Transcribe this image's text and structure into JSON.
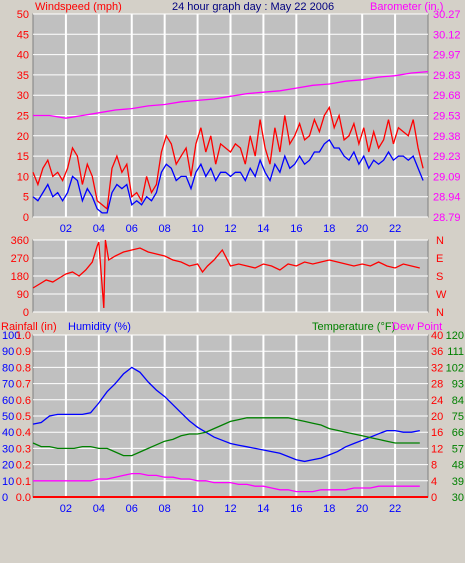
{
  "colors": {
    "background": "#d4d0c8",
    "plot_bg": "#c0c0c0",
    "grid": "#ffffff",
    "wind": "#ff0000",
    "wind_avg": "#0000ff",
    "barometer": "#ff00ff",
    "wind_dir": "#ff0000",
    "humidity": "#0000ff",
    "temperature": "#008000",
    "dew_point": "#ff00ff",
    "rainfall": "#ff0000",
    "title": "#000080"
  },
  "chart_data": [
    {
      "id": "wind",
      "type": "line",
      "title": "24 hour graph day : May 22 2006",
      "left_label": "Windspeed (mph)",
      "right_label": "Barometer (in.)",
      "x_ticks": [
        "02",
        "04",
        "06",
        "08",
        "10",
        "12",
        "14",
        "16",
        "18",
        "20",
        "22"
      ],
      "x_tick_hours": [
        2,
        4,
        6,
        8,
        10,
        12,
        14,
        16,
        18,
        20,
        22
      ],
      "xlim": [
        0,
        24
      ],
      "left_ticks": [
        "0",
        "5",
        "10",
        "15",
        "20",
        "25",
        "30",
        "35",
        "40",
        "45",
        "50"
      ],
      "ylim": [
        0,
        50
      ],
      "right_ticks": [
        "28.79",
        "28.94",
        "29.09",
        "29.23",
        "29.38",
        "29.53",
        "29.68",
        "29.83",
        "29.97",
        "30.12",
        "30.27"
      ],
      "y2lim": [
        28.79,
        30.27
      ],
      "grid": true,
      "series": [
        {
          "name": "Wind gust",
          "axis": "left",
          "x": [
            0,
            0.3,
            0.6,
            0.9,
            1.2,
            1.5,
            1.8,
            2.1,
            2.4,
            2.7,
            3,
            3.3,
            3.6,
            3.9,
            4.2,
            4.5,
            4.8,
            5.1,
            5.4,
            5.7,
            6,
            6.3,
            6.6,
            6.9,
            7.2,
            7.5,
            7.8,
            8.1,
            8.4,
            8.7,
            9,
            9.3,
            9.6,
            9.9,
            10.2,
            10.5,
            10.8,
            11.1,
            11.4,
            11.7,
            12,
            12.3,
            12.6,
            12.9,
            13.2,
            13.5,
            13.8,
            14.1,
            14.4,
            14.7,
            15,
            15.3,
            15.6,
            15.9,
            16.2,
            16.5,
            16.8,
            17.1,
            17.4,
            17.7,
            18,
            18.3,
            18.6,
            18.9,
            19.2,
            19.5,
            19.8,
            20.1,
            20.4,
            20.7,
            21,
            21.3,
            21.6,
            21.9,
            22.2,
            22.5,
            22.8,
            23.1,
            23.4,
            23.7
          ],
          "values": [
            11,
            8,
            12,
            14,
            10,
            11,
            9,
            12,
            17,
            15,
            8,
            13,
            10,
            4,
            3,
            2,
            12,
            15,
            11,
            13,
            5,
            6,
            4,
            10,
            6,
            8,
            16,
            20,
            18,
            13,
            15,
            17,
            10,
            18,
            22,
            16,
            20,
            13,
            18,
            17,
            16,
            18,
            17,
            13,
            20,
            15,
            24,
            17,
            13,
            22,
            16,
            25,
            18,
            20,
            23,
            19,
            20,
            24,
            21,
            25,
            27,
            22,
            25,
            19,
            20,
            23,
            18,
            22,
            16,
            21,
            17,
            19,
            24,
            18,
            22,
            21,
            20,
            24,
            17,
            12
          ]
        },
        {
          "name": "Wind average",
          "axis": "left",
          "x": [
            0,
            0.3,
            0.6,
            0.9,
            1.2,
            1.5,
            1.8,
            2.1,
            2.4,
            2.7,
            3,
            3.3,
            3.6,
            3.9,
            4.2,
            4.5,
            4.8,
            5.1,
            5.4,
            5.7,
            6,
            6.3,
            6.6,
            6.9,
            7.2,
            7.5,
            7.8,
            8.1,
            8.4,
            8.7,
            9,
            9.3,
            9.6,
            9.9,
            10.2,
            10.5,
            10.8,
            11.1,
            11.4,
            11.7,
            12,
            12.3,
            12.6,
            12.9,
            13.2,
            13.5,
            13.8,
            14.1,
            14.4,
            14.7,
            15,
            15.3,
            15.6,
            15.9,
            16.2,
            16.5,
            16.8,
            17.1,
            17.4,
            17.7,
            18,
            18.3,
            18.6,
            18.9,
            19.2,
            19.5,
            19.8,
            20.1,
            20.4,
            20.7,
            21,
            21.3,
            21.6,
            21.9,
            22.2,
            22.5,
            22.8,
            23.1,
            23.4,
            23.7
          ],
          "values": [
            5,
            4,
            6,
            8,
            5,
            6,
            4,
            6,
            10,
            9,
            4,
            7,
            5,
            2,
            1,
            1,
            6,
            8,
            7,
            8,
            3,
            4,
            3,
            5,
            4,
            6,
            11,
            13,
            12,
            9,
            10,
            10,
            7,
            11,
            13,
            10,
            12,
            9,
            11,
            11,
            10,
            11,
            11,
            9,
            12,
            10,
            14,
            11,
            9,
            13,
            11,
            15,
            12,
            13,
            15,
            13,
            14,
            16,
            16,
            18,
            19,
            17,
            17,
            15,
            14,
            16,
            13,
            15,
            12,
            14,
            13,
            14,
            16,
            14,
            15,
            15,
            14,
            15,
            12,
            9
          ]
        },
        {
          "name": "Barometer",
          "axis": "right",
          "x": [
            0,
            1,
            2,
            3,
            4,
            5,
            6,
            7,
            8,
            9,
            10,
            11,
            12,
            13,
            14,
            15,
            16,
            17,
            18,
            19,
            20,
            21,
            22,
            23,
            24
          ],
          "values": [
            29.53,
            29.53,
            29.51,
            29.53,
            29.55,
            29.57,
            29.58,
            29.6,
            29.61,
            29.63,
            29.64,
            29.65,
            29.67,
            29.69,
            29.7,
            29.71,
            29.73,
            29.75,
            29.76,
            29.78,
            29.79,
            29.81,
            29.82,
            29.84,
            29.85
          ]
        }
      ]
    },
    {
      "id": "direction",
      "type": "line",
      "left_ticks": [
        "0",
        "90",
        "180",
        "270",
        "360"
      ],
      "ylim": [
        0,
        360
      ],
      "right_ticks": [
        "N",
        "W",
        "S",
        "E",
        "N"
      ],
      "x_tick_hours": [
        2,
        4,
        6,
        8,
        10,
        12,
        14,
        16,
        18,
        20,
        22
      ],
      "xlim": [
        0,
        24
      ],
      "grid": true,
      "series": [
        {
          "name": "Wind direction",
          "x": [
            0,
            0.4,
            0.8,
            1.2,
            1.6,
            2,
            2.4,
            2.8,
            3.2,
            3.6,
            3.9,
            4.0,
            4.3,
            4.4,
            4.6,
            5,
            5.5,
            6,
            6.5,
            7,
            7.5,
            8,
            8.5,
            9,
            9.5,
            10,
            10.3,
            10.6,
            11,
            11.5,
            12,
            12.5,
            13,
            13.5,
            14,
            14.5,
            15,
            15.5,
            16,
            16.5,
            17,
            17.5,
            18,
            18.5,
            19,
            19.5,
            20,
            20.5,
            21,
            21.5,
            22,
            22.5,
            23,
            23.5
          ],
          "values": [
            120,
            140,
            160,
            150,
            170,
            190,
            200,
            180,
            210,
            250,
            330,
            350,
            20,
            360,
            260,
            280,
            300,
            310,
            320,
            300,
            290,
            280,
            260,
            250,
            230,
            240,
            200,
            230,
            260,
            310,
            230,
            240,
            230,
            220,
            240,
            230,
            210,
            240,
            230,
            250,
            240,
            250,
            260,
            250,
            240,
            230,
            240,
            230,
            250,
            230,
            220,
            240,
            230,
            220
          ]
        }
      ]
    },
    {
      "id": "climate",
      "type": "line",
      "left_label_1": "Rainfall (in)",
      "left_label_2": "Humidity (%)",
      "right_label_1": "Temperature (°F)",
      "right_label_2": "Dew Point",
      "x_ticks": [
        "02",
        "04",
        "06",
        "08",
        "10",
        "12",
        "14",
        "16",
        "18",
        "20",
        "22"
      ],
      "x_tick_hours": [
        2,
        4,
        6,
        8,
        10,
        12,
        14,
        16,
        18,
        20,
        22
      ],
      "xlim": [
        0,
        24
      ],
      "humidity_ticks": [
        "0",
        "10",
        "20",
        "30",
        "40",
        "50",
        "60",
        "70",
        "80",
        "90",
        "100"
      ],
      "rain_ticks": [
        "0.0",
        "0.1",
        "0.2",
        "0.3",
        "0.4",
        "0.5",
        "0.6",
        "0.7",
        "0.8",
        "0.9",
        "1.0"
      ],
      "temp_c_ticks": [
        "0",
        "4",
        "8",
        "12",
        "16",
        "20",
        "24",
        "28",
        "32",
        "36",
        "40"
      ],
      "temp_f_ticks": [
        "30",
        "39",
        "48",
        "57",
        "66",
        "75",
        "84",
        "93",
        "102",
        "111",
        "120"
      ],
      "ylim": [
        0,
        100
      ],
      "grid": true,
      "series": [
        {
          "name": "Humidity (%)",
          "scale": "percent",
          "x": [
            0,
            0.5,
            1,
            1.5,
            2,
            2.5,
            3,
            3.5,
            4,
            4.5,
            5,
            5.5,
            6,
            6.5,
            7,
            7.5,
            8,
            8.5,
            9,
            9.5,
            10,
            10.5,
            11,
            11.5,
            12,
            12.5,
            13,
            13.5,
            14,
            14.5,
            15,
            15.5,
            16,
            16.5,
            17,
            17.5,
            18,
            18.5,
            19,
            19.5,
            20,
            20.5,
            21,
            21.5,
            22,
            22.5,
            23,
            23.5
          ],
          "values": [
            45,
            46,
            50,
            51,
            51,
            51,
            51,
            52,
            58,
            65,
            70,
            76,
            80,
            77,
            71,
            66,
            62,
            57,
            52,
            47,
            43,
            40,
            37,
            35,
            33,
            32,
            31,
            30,
            29,
            28,
            27,
            25,
            23,
            22,
            23,
            24,
            26,
            28,
            31,
            33,
            35,
            37,
            39,
            41,
            41,
            40,
            40,
            41
          ]
        },
        {
          "name": "Temperature (°F)",
          "scale": "temp_f",
          "x": [
            0,
            0.5,
            1,
            1.5,
            2,
            2.5,
            3,
            3.5,
            4,
            4.5,
            5,
            5.5,
            6,
            6.5,
            7,
            7.5,
            8,
            8.5,
            9,
            9.5,
            10,
            10.5,
            11,
            11.5,
            12,
            12.5,
            13,
            13.5,
            14,
            14.5,
            15,
            15.5,
            16,
            16.5,
            17,
            17.5,
            18,
            18.5,
            19,
            19.5,
            20,
            20.5,
            21,
            21.5,
            22,
            22.5,
            23,
            23.5
          ],
          "values": [
            60,
            58,
            58,
            57,
            57,
            57,
            58,
            58,
            57,
            57,
            55,
            53,
            53,
            55,
            57,
            59,
            61,
            62,
            64,
            65,
            65,
            66,
            68,
            70,
            72,
            73,
            74,
            74,
            74,
            74,
            74,
            74,
            73,
            72,
            71,
            70,
            68,
            67,
            66,
            65,
            64,
            63,
            62,
            61,
            60,
            60,
            60,
            60
          ]
        },
        {
          "name": "Dew Point",
          "scale": "temp_f",
          "x": [
            0,
            0.5,
            1,
            1.5,
            2,
            2.5,
            3,
            3.5,
            4,
            4.5,
            5,
            5.5,
            6,
            6.5,
            7,
            7.5,
            8,
            8.5,
            9,
            9.5,
            10,
            10.5,
            11,
            11.5,
            12,
            12.5,
            13,
            13.5,
            14,
            14.5,
            15,
            15.5,
            16,
            16.5,
            17,
            17.5,
            18,
            18.5,
            19,
            19.5,
            20,
            20.5,
            21,
            21.5,
            22,
            22.5,
            23,
            23.5
          ],
          "values": [
            39,
            39,
            39,
            39,
            39,
            39,
            39,
            39,
            40,
            40,
            41,
            42,
            43,
            43,
            42,
            42,
            41,
            41,
            40,
            40,
            39,
            39,
            38,
            38,
            38,
            37,
            37,
            36,
            36,
            35,
            34,
            34,
            33,
            33,
            33,
            34,
            34,
            34,
            34,
            35,
            35,
            35,
            36,
            36,
            36,
            36,
            36,
            36
          ]
        },
        {
          "name": "Rainfall (in)",
          "scale": "rain",
          "x": [
            0,
            24
          ],
          "values": [
            0,
            0
          ]
        }
      ]
    }
  ]
}
